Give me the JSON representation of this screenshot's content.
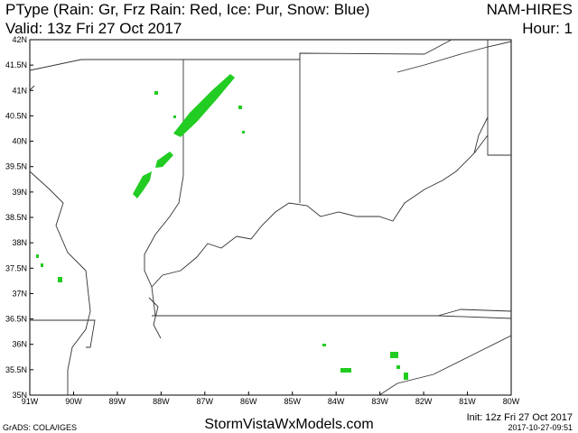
{
  "header": {
    "title": "PType (Rain: Gr, Frz Rain: Red, Ice: Pur, Snow: Blue)",
    "model": "NAM-HIRES",
    "valid": "Valid: 13z Fri 27 Oct 2017",
    "hour": "Hour: 1"
  },
  "map": {
    "lat_labels": [
      "42N",
      "41.5N",
      "41N",
      "40.5N",
      "40N",
      "39.5N",
      "39N",
      "38.5N",
      "38N",
      "37.5N",
      "37N",
      "36.5N",
      "36N",
      "35.5N",
      "35N"
    ],
    "lon_labels": [
      "91W",
      "90W",
      "89W",
      "88W",
      "87W",
      "86W",
      "85W",
      "84W",
      "83W",
      "82W",
      "81W",
      "80W"
    ]
  },
  "footer": {
    "website": "StormVistaWxModels.com",
    "init": "Init: 12z Fri 27 Oct 2017",
    "timestamp": "2017-10-27-09:51",
    "credit": "GrADS: COLA/IGES"
  }
}
